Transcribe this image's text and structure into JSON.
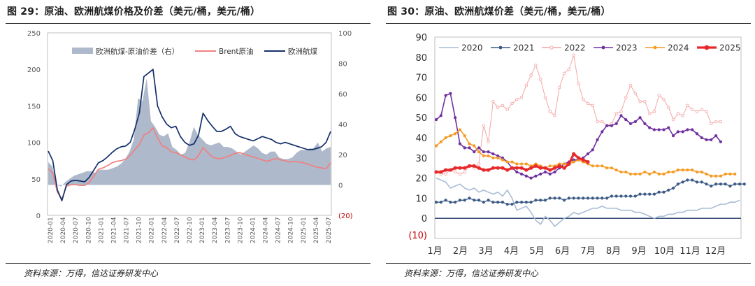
{
  "left": {
    "title": "图 29：原油、欧洲航煤价格及价差（美元/桶，美元/桶）",
    "source": "资料来源：万得，信达证券研发中心",
    "chart_data": {
      "type": "line",
      "y_left_ticks": [
        "0",
        "50",
        "100",
        "150",
        "200",
        "250"
      ],
      "y_left_range": [
        0,
        250
      ],
      "y_right_ticks": [
        "(20)",
        "0",
        "20",
        "40",
        "60",
        "80",
        "100"
      ],
      "y_right_range": [
        -20,
        100
      ],
      "x_labels": [
        "2020-01",
        "2020-04",
        "2020-07",
        "2020-10",
        "2021-01",
        "2021-04",
        "2021-07",
        "2021-10",
        "2022-01",
        "2022-04",
        "2022-07",
        "2022-10",
        "2023-01",
        "2023-04",
        "2023-07",
        "2023-10",
        "2024-01",
        "2024-04",
        "2024-07",
        "2024-10",
        "2025-01",
        "2025-04",
        "2025-07"
      ],
      "series": [
        {
          "name": "欧洲航煤-原油价差（右）",
          "kind": "area",
          "axis": "right",
          "color": "#AEB9CB",
          "values": [
            15,
            12,
            0,
            -1,
            2,
            4,
            6,
            7,
            8,
            9,
            9,
            8,
            10,
            10,
            10,
            11,
            12,
            14,
            17,
            22,
            30,
            57,
            55,
            70,
            42,
            38,
            33,
            32,
            34,
            25,
            23,
            20,
            21,
            28,
            38,
            33,
            30,
            27,
            26,
            27,
            28,
            25,
            25,
            24,
            22,
            20,
            22,
            24,
            26,
            24,
            21,
            20,
            22,
            22,
            18,
            17,
            17,
            18,
            21,
            23,
            23,
            24,
            24,
            28,
            22,
            24,
            25
          ]
        },
        {
          "name": "Brent原油",
          "kind": "line",
          "axis": "left",
          "color": "#F08080",
          "values": [
            64,
            58,
            32,
            22,
            40,
            42,
            42,
            41,
            41,
            45,
            54,
            63,
            65,
            68,
            72,
            74,
            75,
            77,
            82,
            90,
            97,
            110,
            113,
            120,
            106,
            95,
            93,
            87,
            86,
            83,
            80,
            77,
            76,
            82,
            93,
            86,
            80,
            78,
            78,
            80,
            82,
            85,
            86,
            84,
            82,
            80,
            78,
            76,
            74,
            76,
            78,
            76,
            75,
            73,
            74,
            73,
            72,
            70,
            68,
            66,
            65,
            64,
            72
          ]
        },
        {
          "name": "欧洲航煤",
          "kind": "line",
          "axis": "left",
          "color": "#14306B",
          "values": [
            88,
            75,
            35,
            20,
            42,
            47,
            48,
            47,
            46,
            52,
            62,
            72,
            75,
            80,
            86,
            91,
            94,
            95,
            100,
            118,
            140,
            190,
            195,
            200,
            150,
            135,
            125,
            120,
            122,
            108,
            100,
            96,
            98,
            110,
            140,
            130,
            122,
            115,
            115,
            118,
            122,
            112,
            108,
            106,
            104,
            102,
            105,
            108,
            106,
            104,
            100,
            98,
            100,
            98,
            96,
            94,
            92,
            90,
            90,
            92,
            94,
            100,
            115
          ]
        }
      ]
    }
  },
  "right": {
    "title": "图 30：原油、欧洲航煤价差（美元/桶，美元/桶）",
    "source": "资料来源：万得，信达证券研发中心",
    "chart_data": {
      "type": "line",
      "y_ticks": [
        "(10)",
        "0",
        "10",
        "20",
        "30",
        "40",
        "50",
        "60",
        "70",
        "80",
        "90"
      ],
      "y_range": [
        -10,
        90
      ],
      "x_labels": [
        "1月",
        "2月",
        "3月",
        "4月",
        "5月",
        "6月",
        "7月",
        "8月",
        "9月",
        "10月",
        "11月",
        "12月"
      ],
      "series": [
        {
          "name": "2020",
          "color": "#A9BCD6",
          "marker": "none",
          "width": 1.6,
          "values": [
            20,
            19,
            18,
            15,
            16,
            17,
            15,
            14,
            15,
            13,
            14,
            13,
            12,
            13,
            11,
            14,
            10,
            4,
            5,
            6,
            3,
            -1,
            -3,
            1,
            -1,
            -4,
            -2,
            0,
            1,
            3,
            2,
            3,
            4,
            5,
            5,
            6,
            5,
            5,
            5,
            4,
            4,
            4,
            3,
            3,
            2,
            1,
            0,
            1,
            1,
            2,
            2,
            3,
            3,
            4,
            4,
            4,
            5,
            5,
            5,
            6,
            7,
            7,
            8,
            8,
            9
          ]
        },
        {
          "name": "2021",
          "color": "#3C5A86",
          "marker": "dot",
          "width": 1.3,
          "values": [
            8,
            8,
            9,
            8,
            8,
            9,
            9,
            10,
            9,
            9,
            8,
            9,
            8,
            8,
            8,
            7,
            7,
            8,
            8,
            8,
            8,
            9,
            9,
            9,
            10,
            10,
            10,
            9,
            10,
            10,
            10,
            10,
            10,
            10,
            10,
            10,
            10,
            11,
            11,
            11,
            11,
            11,
            11,
            12,
            12,
            12,
            12,
            13,
            13,
            14,
            15,
            17,
            18,
            19,
            19,
            18,
            18,
            17,
            16,
            17,
            17,
            17,
            16,
            17,
            17,
            17
          ]
        },
        {
          "name": "2022",
          "color": "#F4A6A6",
          "marker": "ring",
          "width": 1,
          "values": [
            23,
            22,
            22,
            24,
            23,
            22,
            23,
            26,
            25,
            27,
            46,
            38,
            58,
            55,
            56,
            54,
            57,
            59,
            60,
            66,
            71,
            76,
            69,
            60,
            53,
            51,
            65,
            72,
            74,
            81,
            67,
            59,
            57,
            56,
            48,
            48,
            46,
            47,
            52,
            53,
            60,
            66,
            62,
            58,
            58,
            52,
            53,
            61,
            59,
            55,
            49,
            52,
            51,
            56,
            54,
            53,
            54,
            53,
            47,
            48,
            48
          ]
        },
        {
          "name": "2023",
          "color": "#7030A0",
          "marker": "dot",
          "width": 1.6,
          "values": [
            49,
            51,
            61,
            62,
            50,
            37,
            35,
            35,
            33,
            35,
            33,
            33,
            32,
            31,
            30,
            28,
            25,
            23,
            22,
            21,
            20,
            21,
            22,
            23,
            22,
            23,
            25,
            27,
            28,
            29,
            29,
            30,
            32,
            34,
            39,
            43,
            46,
            46,
            47,
            51,
            49,
            47,
            48,
            50,
            47,
            45,
            44,
            44,
            44,
            45,
            41,
            43,
            43,
            44,
            44,
            42,
            40,
            39,
            39,
            41,
            38
          ]
        },
        {
          "name": "2024",
          "color": "#F59A23",
          "marker": "dot",
          "width": 1.6,
          "values": [
            36,
            38,
            40,
            41,
            42,
            44,
            41,
            37,
            36,
            33,
            31,
            31,
            30,
            30,
            29,
            28,
            28,
            27,
            27,
            27,
            26,
            27,
            26,
            25,
            26,
            26,
            27,
            27,
            27,
            28,
            29,
            28,
            27,
            26,
            26,
            26,
            25,
            25,
            24,
            23,
            23,
            22,
            22,
            22,
            23,
            22,
            23,
            22,
            22,
            23,
            23,
            24,
            24,
            24,
            24,
            23,
            23,
            22,
            21,
            21,
            21,
            22,
            22,
            22
          ]
        },
        {
          "name": "2025",
          "color": "#E8282A",
          "marker": "dot",
          "width": 3.2,
          "values": [
            23,
            23,
            24,
            24,
            25,
            25,
            25,
            26,
            26,
            25,
            24,
            24,
            25,
            25,
            25,
            24,
            25,
            25,
            25,
            24,
            25,
            26,
            25,
            25,
            24,
            25,
            26,
            25,
            27,
            32,
            30,
            29,
            28
          ]
        }
      ]
    }
  }
}
